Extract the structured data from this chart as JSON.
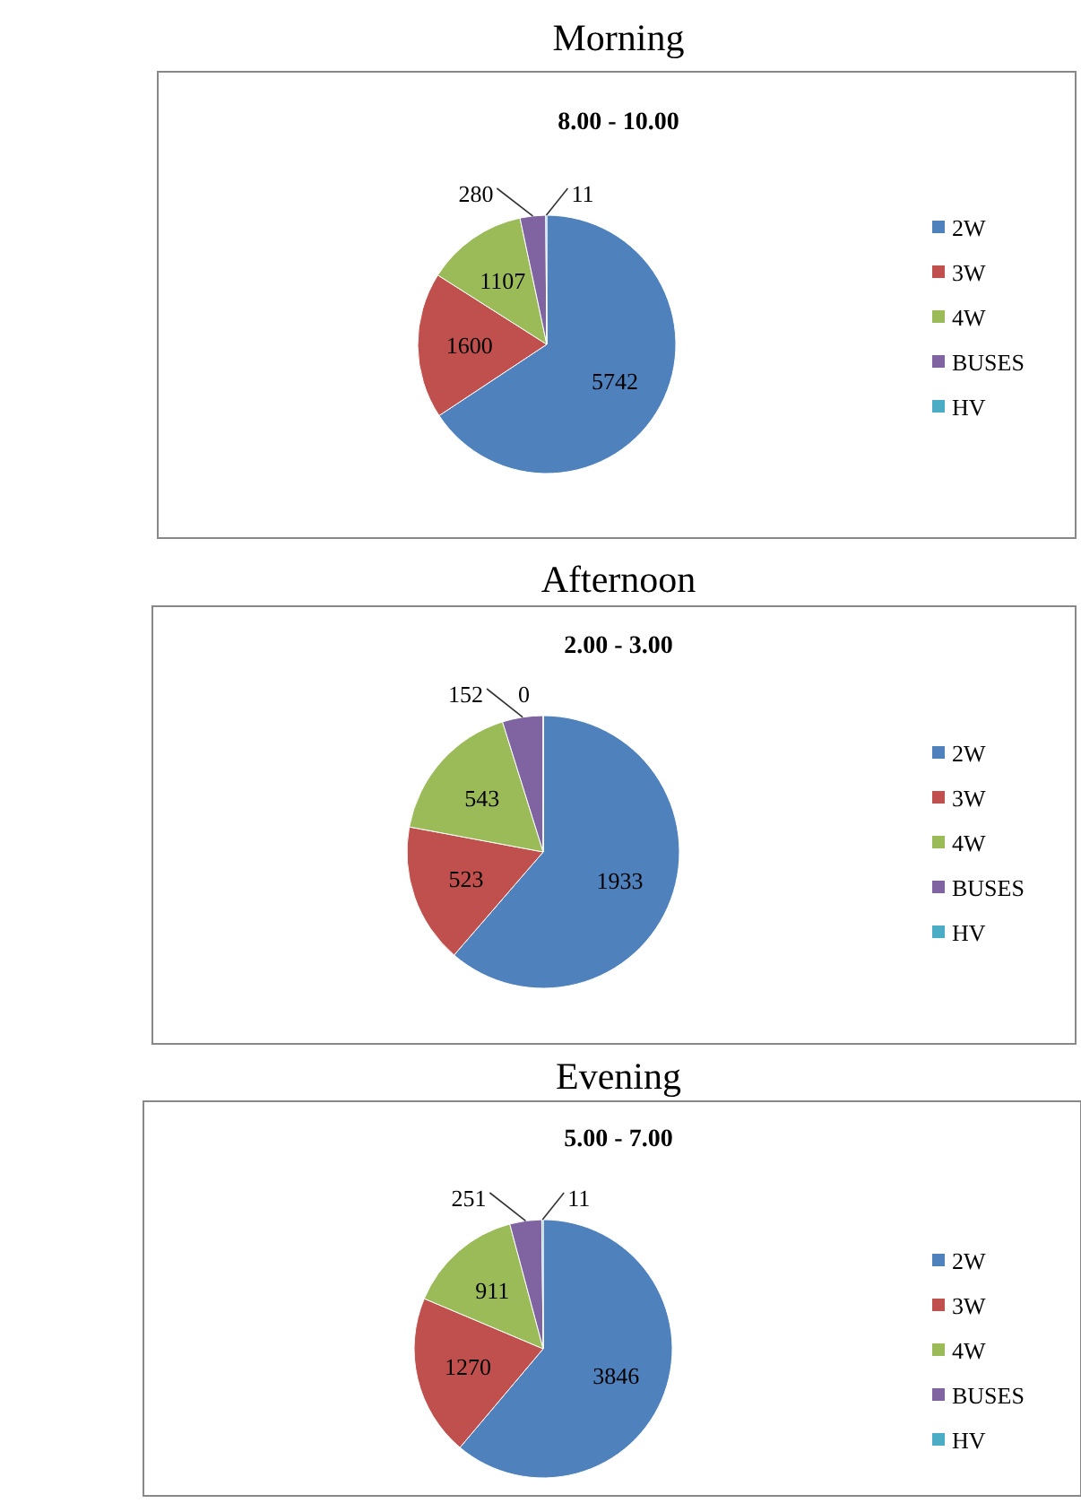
{
  "chart_data": [
    {
      "type": "pie",
      "title": "Morning",
      "subtitle": "8.00 - 10.00",
      "categories": [
        "2W",
        "3W",
        "4W",
        "BUSES",
        "HV"
      ],
      "values": [
        5742,
        1600,
        1107,
        280,
        11
      ],
      "colors": [
        "#4f81bd",
        "#c0504d",
        "#9bbb59",
        "#8064a2",
        "#4bacc6"
      ],
      "data_labels": true,
      "legend": "right"
    },
    {
      "type": "pie",
      "title": "Afternoon",
      "subtitle": "2.00 - 3.00",
      "categories": [
        "2W",
        "3W",
        "4W",
        "BUSES",
        "HV"
      ],
      "values": [
        1933,
        523,
        543,
        152,
        0
      ],
      "colors": [
        "#4f81bd",
        "#c0504d",
        "#9bbb59",
        "#8064a2",
        "#4bacc6"
      ],
      "value_labels": [
        "1933",
        "523",
        "543",
        "152",
        "0"
      ],
      "legend": "right"
    },
    {
      "type": "pie",
      "title": "Evening",
      "subtitle": "5.00 - 7.00",
      "categories": [
        "2W",
        "3W",
        "4W",
        "BUSES",
        "HV"
      ],
      "values": [
        3846,
        1270,
        911,
        251,
        11
      ],
      "colors": [
        "#4f81bd",
        "#c0504d",
        "#9bbb59",
        "#8064a2",
        "#4bacc6"
      ],
      "data_labels": true,
      "legend": "right"
    }
  ]
}
